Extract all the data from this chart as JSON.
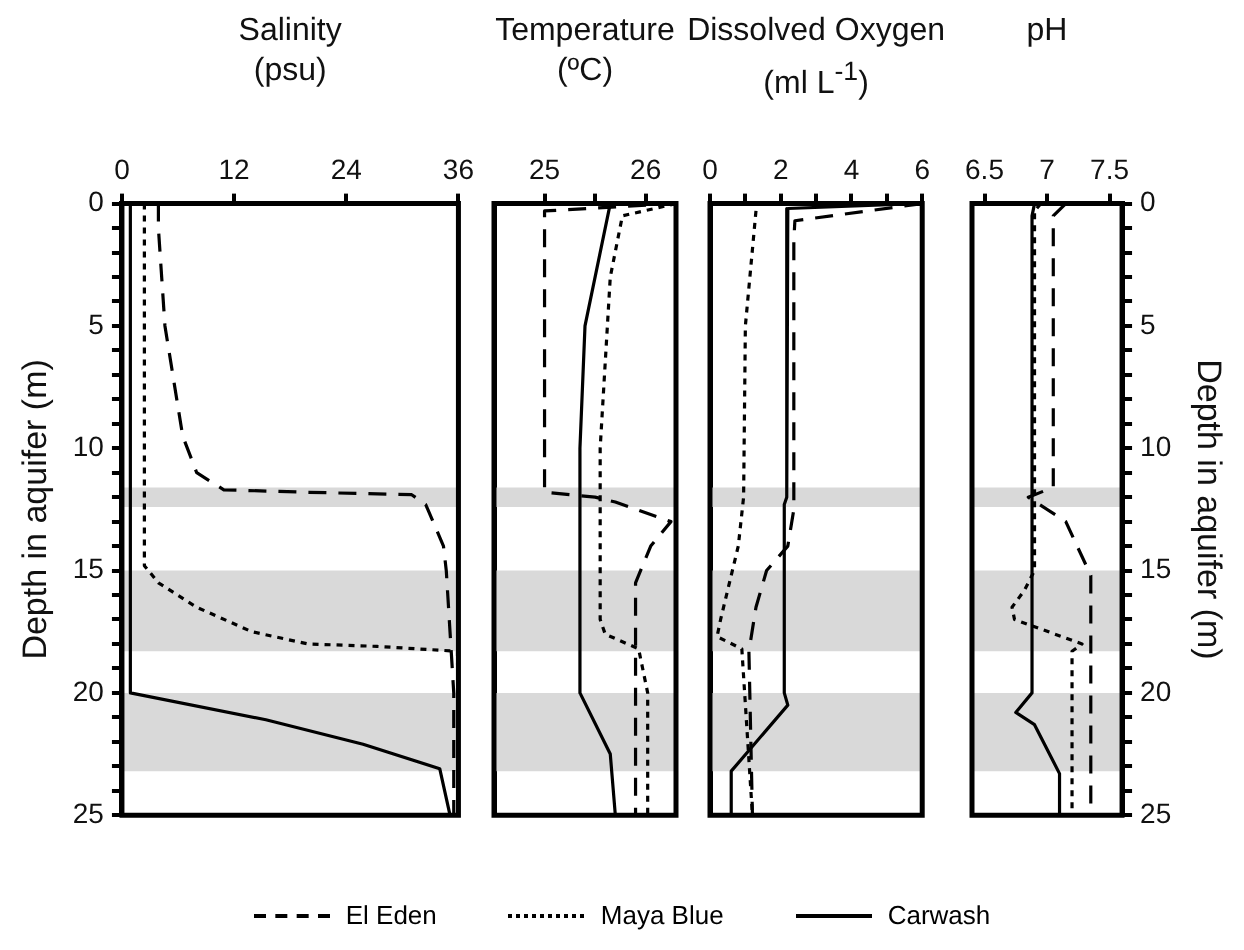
{
  "chart_data": [
    {
      "type": "line",
      "title": "Salinity (psu)",
      "ylabel": "Depth in aquifer (m)",
      "xlim": [
        0,
        36
      ],
      "xticks": [
        0,
        12,
        24,
        36
      ],
      "ylim": [
        25,
        0
      ],
      "yticks": [
        0,
        {
          "value": 1,
          "label": null
        },
        {
          "value": 2,
          "label": null
        },
        {
          "value": 3,
          "label": null
        },
        {
          "value": 4,
          "label": null
        },
        5,
        {
          "value": 6,
          "label": null
        },
        {
          "value": 7,
          "label": null
        },
        {
          "value": 8,
          "label": null
        },
        {
          "value": 9,
          "label": null
        },
        10,
        {
          "value": 11,
          "label": null
        },
        {
          "value": 12,
          "label": null
        },
        {
          "value": 13,
          "label": null
        },
        {
          "value": 14,
          "label": null
        },
        15,
        {
          "value": 16,
          "label": null
        },
        {
          "value": 17,
          "label": null
        },
        {
          "value": 18,
          "label": null
        },
        {
          "value": 19,
          "label": null
        },
        20,
        {
          "value": 21,
          "label": null
        },
        {
          "value": 22,
          "label": null
        },
        {
          "value": 23,
          "label": null
        },
        {
          "value": 24,
          "label": null
        },
        25
      ],
      "legend": "bottom",
      "grid": false,
      "bands": [
        {
          "axis": "y",
          "from": 11.6,
          "to": 12.4,
          "color": "#d9d9d9"
        },
        {
          "axis": "y",
          "from": 15,
          "to": 18.3,
          "color": "#d9d9d9"
        },
        {
          "axis": "y",
          "from": 20,
          "to": 23.2,
          "color": "#d9d9d9"
        }
      ],
      "series": [
        {
          "name": "El Eden",
          "color": "#000000",
          "line_style": "dashed",
          "x": [
            3.9,
            3.9,
            4.6,
            6.5,
            8,
            10.9,
            19.9,
            31,
            32.5,
            34.4,
            34.7,
            35.5,
            35.5
          ],
          "values": [
            0,
            1,
            5,
            9.5,
            11,
            11.7,
            11.8,
            11.9,
            12.3,
            14,
            15,
            20,
            25
          ]
        },
        {
          "name": "Maya Blue",
          "color": "#000000",
          "line_style": "dotted",
          "x": [
            2.4,
            2.4,
            3.9,
            8,
            13.9,
            19.9,
            27.3,
            35.9,
            36
          ],
          "values": [
            0,
            14.8,
            15.5,
            16.5,
            17.5,
            18,
            18.1,
            18.3,
            25
          ]
        },
        {
          "name": "Carwash",
          "color": "#000000",
          "line_style": "solid",
          "x": [
            0.9,
            0.9,
            15.4,
            25.8,
            34,
            35.1
          ],
          "values": [
            0,
            20,
            21.1,
            22.1,
            23.1,
            25
          ]
        }
      ]
    },
    {
      "type": "line",
      "title": "Temperature (ºC)",
      "xlim": [
        24.5,
        26.3
      ],
      "xticks": [
        25,
        {
          "value": 25.5,
          "label": null
        },
        26
      ],
      "ylim": [
        25,
        0
      ],
      "tick_labels": "x",
      "grid": false,
      "bands": [
        {
          "axis": "y",
          "from": 11.6,
          "to": 12.4,
          "color": "#d9d9d9"
        },
        {
          "axis": "y",
          "from": 15,
          "to": 18.3,
          "color": "#d9d9d9"
        },
        {
          "axis": "y",
          "from": 20,
          "to": 23.2,
          "color": "#d9d9d9"
        }
      ],
      "series": [
        {
          "color": "#000000",
          "line_style": "dashed",
          "x": [
            26.3,
            25.0,
            25.0,
            25.5,
            25.7,
            26.25,
            26.05,
            25.9,
            25.9
          ],
          "values": [
            0,
            0.3,
            11.8,
            12.0,
            12.2,
            13.0,
            14.0,
            15.5,
            25
          ]
        },
        {
          "color": "#000000",
          "line_style": "dotted",
          "x": [
            26.3,
            25.77,
            25.65,
            25.55,
            25.55,
            25.6,
            25.93,
            26.02,
            26.02
          ],
          "values": [
            0,
            0.5,
            3,
            10,
            17,
            17.6,
            18.2,
            20,
            25
          ]
        },
        {
          "color": "#000000",
          "line_style": "solid",
          "x": [
            25.65,
            25.4,
            25.35,
            25.35,
            25.65,
            25.7
          ],
          "values": [
            0,
            5,
            10,
            20,
            22.5,
            25
          ]
        }
      ]
    },
    {
      "type": "line",
      "title": "Dissolved Oxygen (ml L$^{-1}$)",
      "xlim": [
        0,
        6
      ],
      "xticks": [
        0,
        {
          "value": 1,
          "label": null
        },
        2,
        {
          "value": 3,
          "label": null
        },
        4,
        {
          "value": 5,
          "label": null
        },
        6
      ],
      "ylim": [
        25,
        0
      ],
      "tick_labels": "x",
      "grid": false,
      "bands": [
        {
          "axis": "y",
          "from": 11.6,
          "to": 12.4,
          "color": "#d9d9d9"
        },
        {
          "axis": "y",
          "from": 15,
          "to": 18.3,
          "color": "#d9d9d9"
        },
        {
          "axis": "y",
          "from": 20,
          "to": 23.2,
          "color": "#d9d9d9"
        }
      ],
      "series": [
        {
          "color": "#000000",
          "line_style": "dashed",
          "x": [
            6,
            2.4,
            2.37,
            2.37,
            2.2,
            1.6,
            1.3,
            1.1,
            1.2
          ],
          "values": [
            0,
            0.7,
            1.5,
            12.5,
            14,
            15,
            16.5,
            18.3,
            25
          ]
        },
        {
          "color": "#000000",
          "line_style": "dotted",
          "x": [
            1.3,
            1.0,
            0.95,
            0.8,
            0.3,
            0.2,
            0.9,
            1.2
          ],
          "values": [
            0.3,
            5,
            12,
            14,
            17,
            17.7,
            18.2,
            25
          ]
        },
        {
          "color": "#000000",
          "line_style": "solid",
          "x": [
            5.8,
            2.2,
            2.17,
            2.1,
            2.1,
            2.2,
            0.6,
            0.6
          ],
          "values": [
            0,
            0.2,
            12,
            12.3,
            20,
            20.5,
            23.2,
            25
          ]
        }
      ]
    },
    {
      "type": "line",
      "title": "pH",
      "xlim": [
        6.4,
        7.6
      ],
      "xticks": [
        6.5,
        7,
        7.5
      ],
      "y2label": "Depth in aquifer (m)",
      "y2lim": [
        25,
        0
      ],
      "y2ticks": [
        0,
        {
          "value": 1,
          "label": null
        },
        {
          "value": 2,
          "label": null
        },
        {
          "value": 3,
          "label": null
        },
        {
          "value": 4,
          "label": null
        },
        5,
        {
          "value": 6,
          "label": null
        },
        {
          "value": 7,
          "label": null
        },
        {
          "value": 8,
          "label": null
        },
        {
          "value": 9,
          "label": null
        },
        10,
        {
          "value": 11,
          "label": null
        },
        {
          "value": 12,
          "label": null
        },
        {
          "value": 13,
          "label": null
        },
        {
          "value": 14,
          "label": null
        },
        15,
        {
          "value": 16,
          "label": null
        },
        {
          "value": 17,
          "label": null
        },
        {
          "value": 18,
          "label": null
        },
        {
          "value": 19,
          "label": null
        },
        20,
        {
          "value": 21,
          "label": null
        },
        {
          "value": 22,
          "label": null
        },
        {
          "value": 23,
          "label": null
        },
        {
          "value": 24,
          "label": null
        },
        25
      ],
      "grid": false,
      "bands": [
        {
          "axis": "y2",
          "from": 11.6,
          "to": 12.4,
          "color": "#d9d9d9"
        },
        {
          "axis": "y2",
          "from": 15,
          "to": 18.3,
          "color": "#d9d9d9"
        },
        {
          "axis": "y2",
          "from": 20,
          "to": 23.2,
          "color": "#d9d9d9"
        }
      ],
      "series": [
        {
          "axis": "y2",
          "color": "#000000",
          "line_style": "dashed",
          "x": [
            7.15,
            7.05,
            7.05,
            6.85,
            7.15,
            7.35,
            7.35
          ],
          "values": [
            0,
            0.5,
            11.6,
            12,
            13,
            15.2,
            25
          ]
        },
        {
          "axis": "y2",
          "color": "#000000",
          "line_style": "dotted",
          "x": [
            6.95,
            6.9,
            6.9,
            6.82,
            6.72,
            6.74,
            7.28,
            7.2,
            7.2
          ],
          "values": [
            0,
            0.3,
            15,
            15.8,
            16.5,
            17,
            18,
            18.3,
            25
          ]
        },
        {
          "axis": "y2",
          "color": "#000000",
          "line_style": "solid",
          "x": [
            6.9,
            6.88,
            6.88,
            6.75,
            6.9,
            7.1,
            7.1
          ],
          "values": [
            0,
            0.5,
            20,
            20.8,
            21.3,
            23.3,
            25
          ]
        }
      ]
    }
  ]
}
